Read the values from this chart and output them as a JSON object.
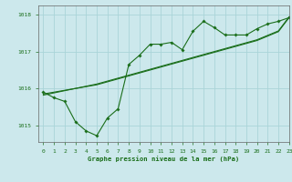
{
  "title": "Graphe pression niveau de la mer (hPa)",
  "background_color": "#cce8ec",
  "grid_color": "#aad4d8",
  "line_color": "#1a6e1a",
  "xlim": [
    -0.5,
    23
  ],
  "ylim": [
    1014.55,
    1018.25
  ],
  "xticks": [
    0,
    1,
    2,
    3,
    4,
    5,
    6,
    7,
    8,
    9,
    10,
    11,
    12,
    13,
    14,
    15,
    16,
    17,
    18,
    19,
    20,
    21,
    22,
    23
  ],
  "yticks": [
    1015,
    1016,
    1017,
    1018
  ],
  "hours": [
    0,
    1,
    2,
    3,
    4,
    5,
    6,
    7,
    8,
    9,
    10,
    11,
    12,
    13,
    14,
    15,
    16,
    17,
    18,
    19,
    20,
    21,
    22,
    23
  ],
  "line_wavy": [
    1015.9,
    1015.75,
    1015.65,
    1015.1,
    1014.85,
    1014.72,
    1015.2,
    1015.45,
    1016.65,
    1016.9,
    1017.2,
    1017.2,
    1017.25,
    1017.05,
    1017.55,
    1017.82,
    1017.65,
    1017.45,
    1017.45,
    1017.45,
    1017.62,
    1017.75,
    1017.82,
    1017.92
  ],
  "line_straight1": [
    1015.85,
    1015.9,
    1015.95,
    1016.0,
    1016.05,
    1016.1,
    1016.18,
    1016.26,
    1016.34,
    1016.42,
    1016.5,
    1016.58,
    1016.66,
    1016.74,
    1016.82,
    1016.9,
    1016.98,
    1017.06,
    1017.14,
    1017.22,
    1017.3,
    1017.42,
    1017.54,
    1017.92
  ],
  "line_straight2": [
    1015.82,
    1015.88,
    1015.94,
    1016.0,
    1016.06,
    1016.12,
    1016.2,
    1016.28,
    1016.36,
    1016.44,
    1016.52,
    1016.6,
    1016.68,
    1016.76,
    1016.84,
    1016.92,
    1017.0,
    1017.08,
    1017.16,
    1017.24,
    1017.32,
    1017.44,
    1017.56,
    1017.94
  ]
}
